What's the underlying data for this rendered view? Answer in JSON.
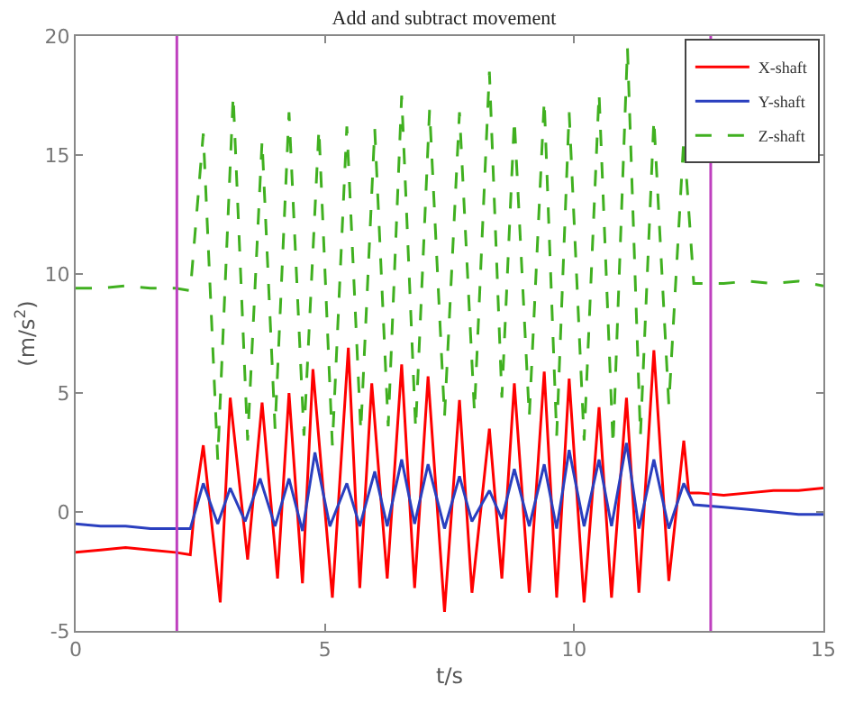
{
  "chart_data": {
    "type": "line",
    "title": "Add and subtract movement",
    "xlabel": "t/s",
    "ylabel": "(m/s$^{2}$)",
    "xlim": [
      0,
      15
    ],
    "ylim": [
      -5,
      20
    ],
    "xticks": [
      0,
      5,
      10,
      15
    ],
    "yticks": [
      -5,
      0,
      5,
      10,
      15,
      20
    ],
    "grid": false,
    "legend": "top right",
    "marker": "none",
    "ref_lines": [
      {
        "axis": "x",
        "value": 2.03,
        "color": "#bf40bf"
      },
      {
        "axis": "x",
        "value": 12.74,
        "color": "#bf40bf"
      }
    ],
    "series": [
      {
        "name": "X-shaft",
        "color": "#ff0000",
        "line_style": "solid",
        "x": [
          0,
          0.5,
          1,
          1.5,
          2,
          2.3,
          2.4,
          2.56,
          2.9,
          3.1,
          3.45,
          3.74,
          4.05,
          4.28,
          4.55,
          4.76,
          5.15,
          5.47,
          5.7,
          5.94,
          6.25,
          6.54,
          6.8,
          7.07,
          7.4,
          7.7,
          7.95,
          8.3,
          8.55,
          8.8,
          9.1,
          9.4,
          9.65,
          9.9,
          10.2,
          10.5,
          10.75,
          11.05,
          11.3,
          11.6,
          11.9,
          12.2,
          12.3,
          12.5,
          13,
          13.5,
          14,
          14.5,
          15
        ],
        "values": [
          -1.7,
          -1.6,
          -1.5,
          -1.6,
          -1.7,
          -1.8,
          0.5,
          2.8,
          -3.8,
          4.8,
          -2.0,
          4.6,
          -2.8,
          5.0,
          -3.0,
          6.0,
          -3.6,
          6.9,
          -3.2,
          5.4,
          -2.8,
          6.2,
          -3.2,
          5.7,
          -4.2,
          4.7,
          -3.4,
          3.5,
          -2.8,
          5.4,
          -3.4,
          5.9,
          -3.6,
          5.6,
          -3.8,
          4.4,
          -3.6,
          4.8,
          -3.4,
          6.8,
          -2.9,
          3.0,
          0.8,
          0.8,
          0.7,
          0.8,
          0.9,
          0.9,
          1.0
        ]
      },
      {
        "name": "Y-shaft",
        "color": "#2a3fbf",
        "line_style": "solid",
        "x": [
          0,
          0.5,
          1,
          1.5,
          2,
          2.3,
          2.56,
          2.85,
          3.1,
          3.4,
          3.7,
          4.0,
          4.28,
          4.55,
          4.8,
          5.1,
          5.44,
          5.7,
          6.0,
          6.25,
          6.54,
          6.8,
          7.07,
          7.4,
          7.7,
          7.95,
          8.3,
          8.55,
          8.8,
          9.1,
          9.4,
          9.65,
          9.9,
          10.2,
          10.5,
          10.75,
          11.05,
          11.3,
          11.6,
          11.9,
          12.2,
          12.4,
          13,
          13.5,
          14,
          14.5,
          15
        ],
        "values": [
          -0.5,
          -0.6,
          -0.6,
          -0.7,
          -0.7,
          -0.7,
          1.2,
          -0.5,
          1.0,
          -0.4,
          1.4,
          -0.6,
          1.4,
          -0.8,
          2.5,
          -0.6,
          1.2,
          -0.6,
          1.7,
          -0.6,
          2.2,
          -0.5,
          2.0,
          -0.7,
          1.5,
          -0.4,
          0.9,
          -0.3,
          1.8,
          -0.6,
          2.0,
          -0.7,
          2.6,
          -0.6,
          2.2,
          -0.6,
          2.9,
          -0.7,
          2.2,
          -0.7,
          1.2,
          0.3,
          0.2,
          0.1,
          0.0,
          -0.1,
          -0.1
        ]
      },
      {
        "name": "Z-shaft",
        "color": "#40b020",
        "line_style": "dashed",
        "x": [
          0,
          0.5,
          1,
          1.5,
          2,
          2.3,
          2.56,
          2.85,
          3.16,
          3.45,
          3.74,
          4.0,
          4.28,
          4.58,
          4.88,
          5.15,
          5.44,
          5.72,
          6.0,
          6.27,
          6.54,
          6.82,
          7.1,
          7.4,
          7.7,
          8.0,
          8.3,
          8.55,
          8.8,
          9.1,
          9.4,
          9.65,
          9.9,
          10.2,
          10.5,
          10.78,
          11.07,
          11.33,
          11.6,
          11.9,
          12.2,
          12.4,
          13,
          13.5,
          14,
          14.5,
          15
        ],
        "values": [
          9.4,
          9.4,
          9.5,
          9.4,
          9.4,
          9.3,
          15.9,
          2.2,
          17.5,
          3.0,
          15.6,
          3.5,
          16.8,
          3.2,
          16.1,
          2.8,
          16.2,
          3.4,
          16.1,
          3.6,
          17.5,
          3.5,
          16.9,
          4.0,
          16.8,
          4.2,
          18.5,
          4.8,
          16.5,
          4.0,
          17.3,
          3.2,
          16.8,
          3.0,
          17.6,
          2.8,
          19.5,
          3.2,
          16.5,
          4.5,
          15.7,
          9.6,
          9.6,
          9.7,
          9.6,
          9.7,
          9.5
        ]
      }
    ]
  }
}
